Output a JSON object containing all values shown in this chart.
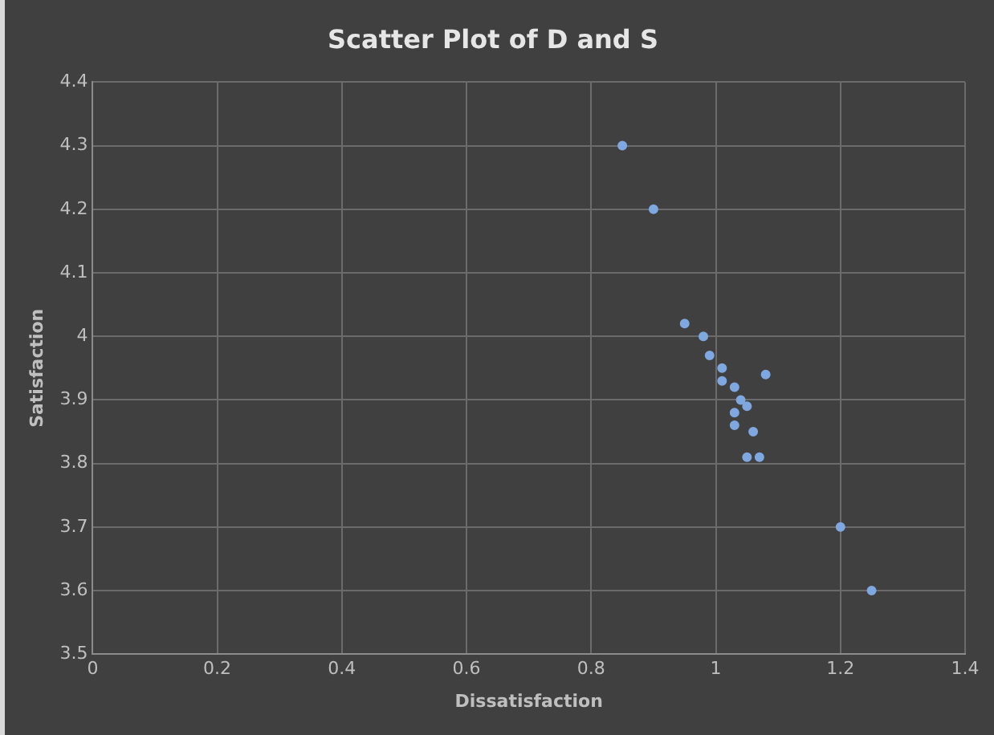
{
  "chart_data": {
    "type": "scatter",
    "title": "Scatter Plot of D and S",
    "xlabel": "Dissatisfaction",
    "ylabel": "Satisfaction",
    "x": [
      0.85,
      0.9,
      0.95,
      0.98,
      0.99,
      1.01,
      1.01,
      1.03,
      1.04,
      1.05,
      1.03,
      1.03,
      1.06,
      1.05,
      1.07,
      1.08,
      1.2,
      1.25
    ],
    "series": [
      {
        "color": "#7fa8e0",
        "values": [
          4.3,
          4.2,
          4.02,
          4.0,
          3.97,
          3.95,
          3.93,
          3.92,
          3.9,
          3.89,
          3.88,
          3.86,
          3.85,
          3.81,
          3.81,
          3.94,
          3.7,
          3.6
        ]
      }
    ],
    "xlim": [
      0,
      1.4
    ],
    "xticks": [
      0,
      0.2,
      0.4,
      0.6,
      0.8,
      1,
      1.2,
      1.4
    ],
    "ylim": [
      3.5,
      4.4
    ],
    "yticks": [
      3.5,
      3.6,
      3.7,
      3.8,
      3.9,
      4,
      4.1,
      4.2,
      4.3,
      4.4
    ],
    "grid": true,
    "legend": false,
    "marker": "circle"
  }
}
